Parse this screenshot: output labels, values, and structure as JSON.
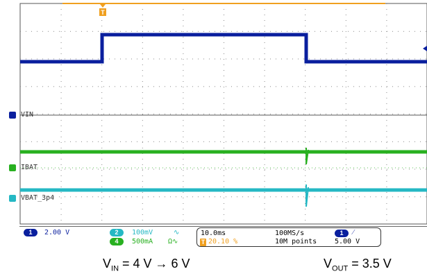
{
  "scope": {
    "colors": {
      "ch1": "#0a1f9e",
      "ch2": "#25b8c4",
      "ch4": "#28b020",
      "trigger": "#f0a020",
      "grid": "#7a7a7a"
    },
    "channels": [
      {
        "id": "1",
        "name": "VIN",
        "color": "#0a1f9e"
      },
      {
        "id": "4",
        "name": "IBAT",
        "color": "#28b020"
      },
      {
        "id": "2",
        "name": "VBAT_3p4",
        "color": "#25b8c4"
      }
    ],
    "trigger_label": "T"
  },
  "infobar": {
    "ch1_badge": "1",
    "ch1_scale": "2.00 V",
    "ch2_badge": "2",
    "ch2_scale": "100mV",
    "ch4_badge": "4",
    "ch4_scale": "500mA",
    "timebase": "10.0ms",
    "trigger_pos": "20.10 %",
    "sample_rate": "100MS/s",
    "record_length": "10M points",
    "trig_badge": "1",
    "trig_level": "5.00 V"
  },
  "captions": {
    "vin_sym": "V",
    "vin_sub": "IN",
    "vin_rest": " = 4 V → 6 V",
    "vout_sym": "V",
    "vout_sub": "OUT",
    "vout_rest": " = 3.5 V"
  }
}
